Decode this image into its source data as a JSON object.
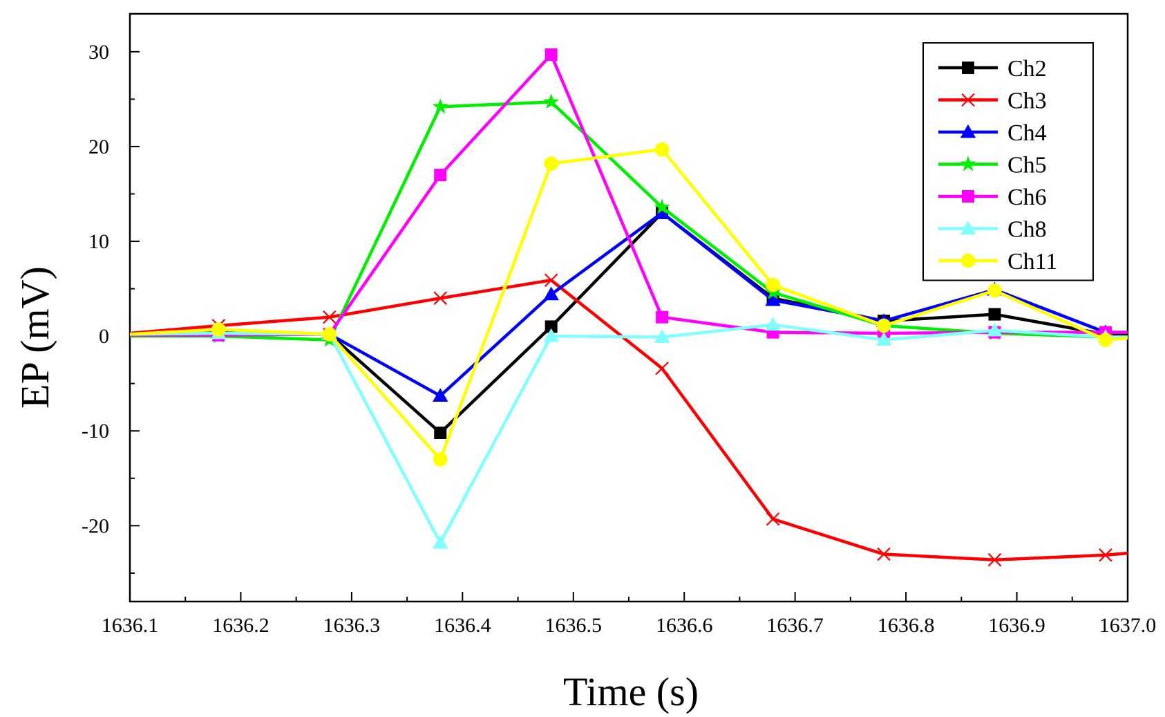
{
  "chart_data": {
    "type": "line",
    "xlabel": "Time (s)",
    "ylabel": "EP (mV)",
    "xlim": [
      1636.1,
      1637.0
    ],
    "ylim": [
      -28,
      34
    ],
    "x_ticks": [
      "1636.1",
      "1636.2",
      "1636.3",
      "1636.4",
      "1636.5",
      "1636.6",
      "1636.7",
      "1636.8",
      "1636.9",
      "1637.0"
    ],
    "y_ticks": [
      "-20",
      "-10",
      "0",
      "10",
      "20",
      "30"
    ],
    "legend_position": "top-right",
    "grid": false,
    "x": [
      1636.1,
      1636.18,
      1636.28,
      1636.38,
      1636.48,
      1636.58,
      1636.68,
      1636.78,
      1636.88,
      1636.98,
      1637.0
    ],
    "series": [
      {
        "name": "Ch2",
        "color": "#000000",
        "marker": "square",
        "values": [
          0.2,
          0.5,
          0.2,
          -10.2,
          1.0,
          13.0,
          4.0,
          1.6,
          2.3,
          0.2,
          0.1
        ]
      },
      {
        "name": "Ch3",
        "color": "#ff0000",
        "marker": "x",
        "values": [
          0.3,
          1.1,
          2.0,
          4.0,
          5.9,
          -3.4,
          -19.3,
          -23.0,
          -23.6,
          -23.1,
          -22.9
        ]
      },
      {
        "name": "Ch4",
        "color": "#0000ff",
        "marker": "triangle",
        "values": [
          0.2,
          0.4,
          0.2,
          -6.3,
          4.4,
          13.0,
          3.8,
          1.6,
          4.9,
          0.4,
          0.4
        ]
      },
      {
        "name": "Ch5",
        "color": "#00ee00",
        "marker": "star",
        "values": [
          0.0,
          0.0,
          -0.4,
          24.2,
          24.7,
          13.6,
          4.6,
          1.1,
          0.3,
          -0.1,
          -0.1
        ]
      },
      {
        "name": "Ch6",
        "color": "#ff00ff",
        "marker": "square",
        "values": [
          0.1,
          0.1,
          0.2,
          17.0,
          29.7,
          2.0,
          0.4,
          0.3,
          0.4,
          0.4,
          0.4
        ]
      },
      {
        "name": "Ch8",
        "color": "#80ffff",
        "marker": "triangle",
        "values": [
          0.2,
          0.3,
          0.2,
          -21.8,
          0.0,
          -0.1,
          1.2,
          -0.4,
          0.6,
          -0.1,
          -0.1
        ]
      },
      {
        "name": "Ch11",
        "color": "#ffff00",
        "marker": "circle",
        "values": [
          0.2,
          0.7,
          0.2,
          -13.0,
          18.2,
          19.7,
          5.4,
          1.1,
          4.8,
          -0.4,
          -0.2
        ]
      }
    ]
  }
}
